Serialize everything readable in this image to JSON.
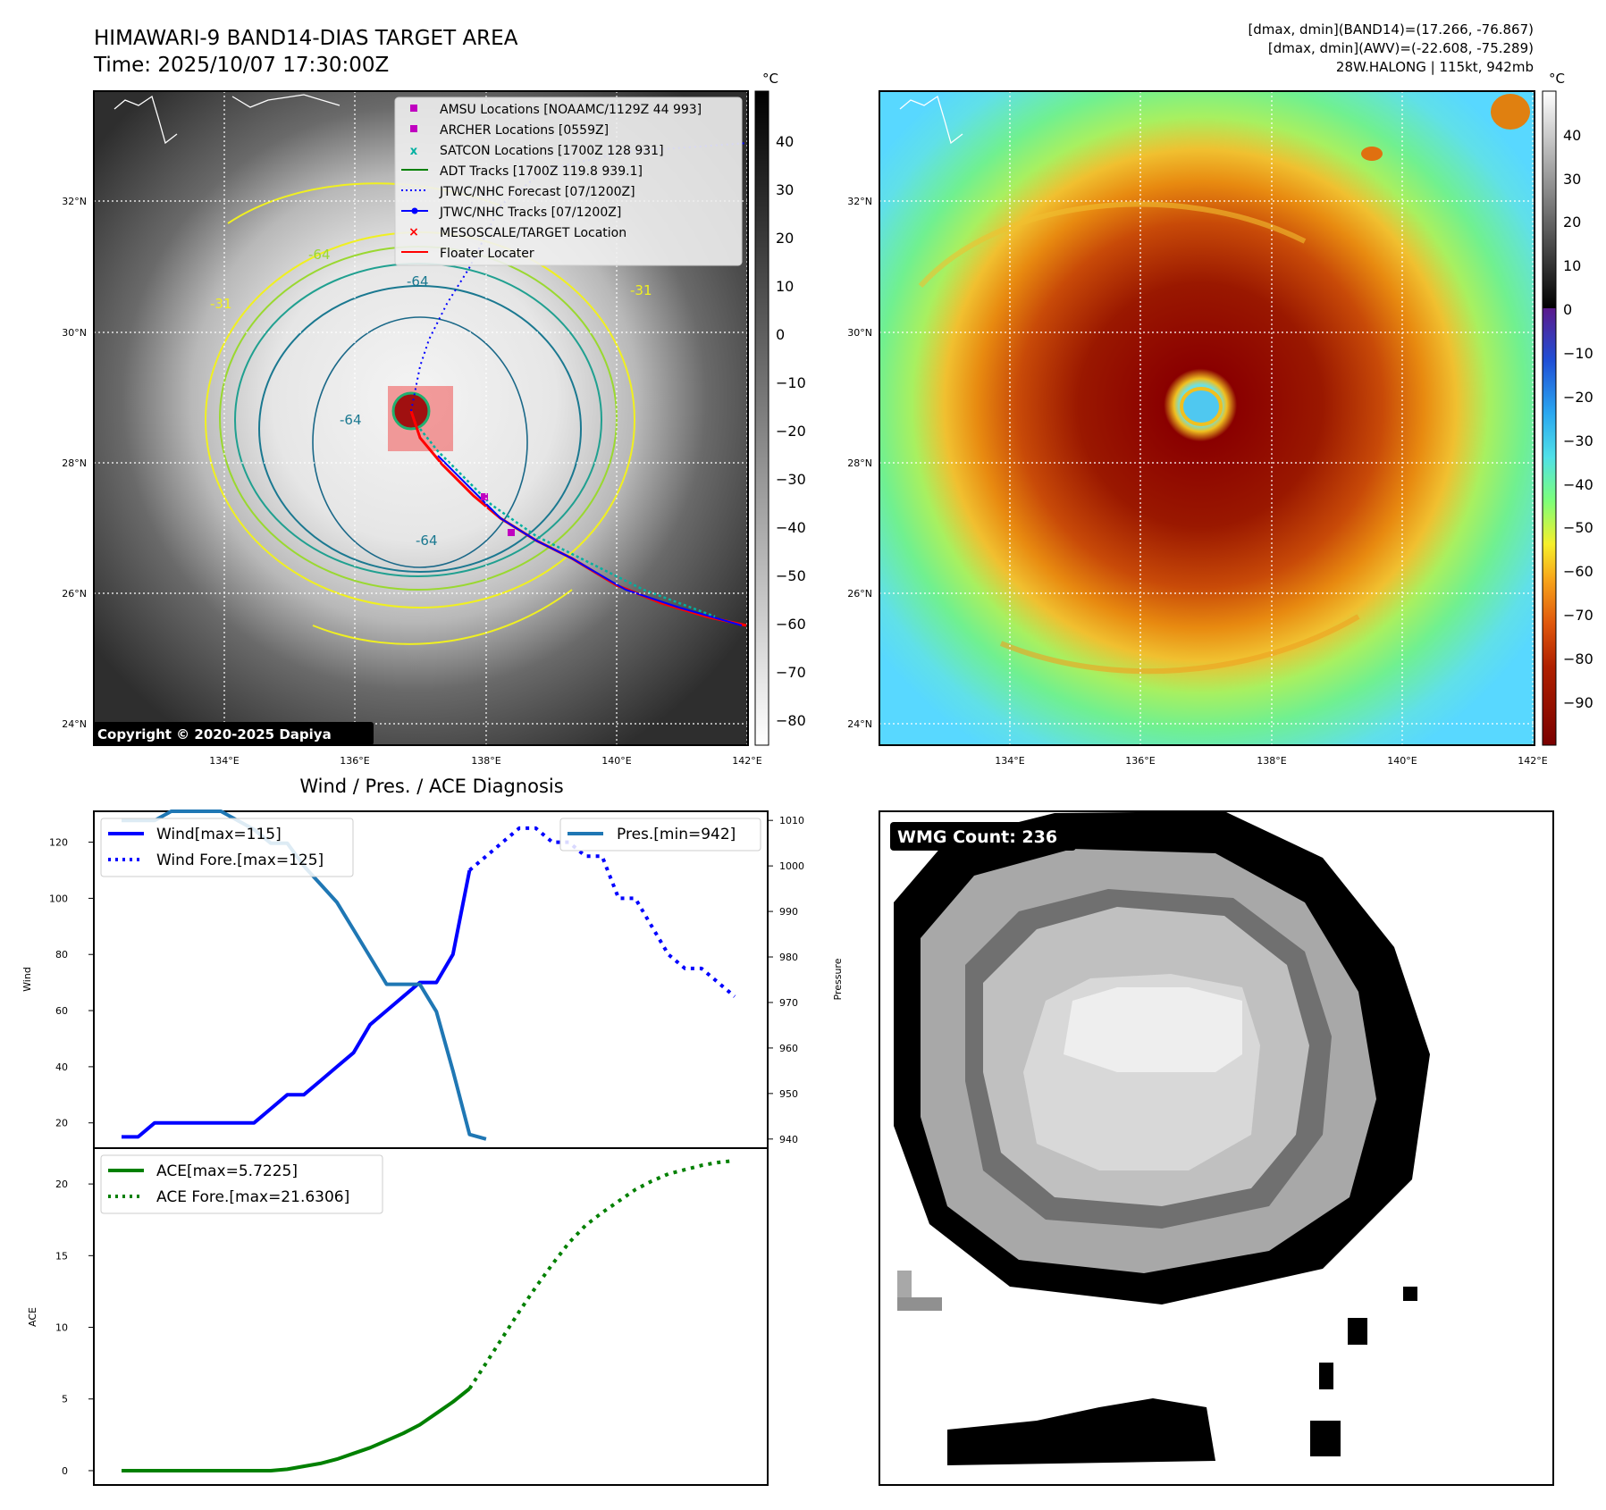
{
  "header": {
    "title_line1": "HIMAWARI-9 BAND14-DIAS TARGET AREA",
    "title_line2": "Time: 2025/10/07 17:30:00Z",
    "info_line1": "[dmax, dmin](BAND14)=(17.266, -76.867)",
    "info_line2": "[dmax, dmin](AWV)=(-22.608, -75.289)",
    "info_line3": "28W.HALONG | 115kt, 942mb"
  },
  "maps": {
    "lat_labels": [
      "32°N",
      "30°N",
      "28°N",
      "26°N",
      "24°N"
    ],
    "lon_labels": [
      "134°E",
      "136°E",
      "138°E",
      "140°E",
      "142°E"
    ],
    "copyright": "Copyright © 2020-2025 Dapiya",
    "contour_labels": [
      "-64",
      "-31",
      "-64",
      "-64",
      "-64",
      "-31"
    ],
    "legend": [
      {
        "label": "AMSU Locations [NOAAMC/1129Z 44 993]",
        "color": "#c000c0",
        "marker": "square"
      },
      {
        "label": "ARCHER Locations [0559Z]",
        "color": "#c000c0",
        "marker": "square"
      },
      {
        "label": "SATCON Locations [1700Z 128 931]",
        "color": "#00b0a0",
        "marker": "x"
      },
      {
        "label": "ADT Tracks [1700Z 119.8 939.1]",
        "color": "#008000",
        "marker": "line"
      },
      {
        "label": "JTWC/NHC Forecast [07/1200Z]",
        "color": "#0000ff",
        "marker": "dotted"
      },
      {
        "label": "JTWC/NHC Tracks [07/1200Z]",
        "color": "#0000ff",
        "marker": "line-dot"
      },
      {
        "label": "MESOSCALE/TARGET Location",
        "color": "#ff0000",
        "marker": "x"
      },
      {
        "label": "Floater Locater",
        "color": "#ff0000",
        "marker": "line"
      }
    ],
    "gray_colorbar": {
      "unit": "°C",
      "ticks": [
        "40",
        "30",
        "20",
        "10",
        "0",
        "−10",
        "−20",
        "−30",
        "−40",
        "−50",
        "−60",
        "−70",
        "−80"
      ]
    },
    "color_colorbar": {
      "unit": "°C",
      "ticks": [
        "40",
        "30",
        "20",
        "10",
        "0",
        "−10",
        "−20",
        "−30",
        "−40",
        "−50",
        "−60",
        "−70",
        "−80",
        "−90"
      ]
    }
  },
  "diagnosis": {
    "title": "Wind / Pres. / ACE Diagnosis",
    "wmg_label": "WMG Count: 236"
  },
  "chart_data": [
    {
      "type": "line",
      "title": "Wind / Pres. / ACE Diagnosis",
      "ylabel": "Wind",
      "y2label": "Pressure",
      "ylim": [
        11,
        131
      ],
      "y2lim": [
        938,
        1012
      ],
      "yticks": [
        "120",
        "100",
        "80",
        "60",
        "40",
        "20"
      ],
      "y2ticks": [
        "1010",
        "1000",
        "990",
        "980",
        "970",
        "960",
        "950",
        "940"
      ],
      "legend_left": [
        "Wind[max=115]",
        "Wind Fore.[max=125]"
      ],
      "legend_right": [
        "Pres.[min=942]"
      ],
      "series": [
        {
          "name": "Wind[max=115]",
          "color": "#0000ff",
          "style": "solid",
          "axis": "left",
          "x": [
            0,
            1,
            2,
            3,
            4,
            5,
            6,
            7,
            8,
            9,
            10,
            11,
            12,
            13,
            14,
            15,
            16,
            17,
            18,
            19,
            20,
            21
          ],
          "values": [
            15,
            15,
            20,
            20,
            20,
            20,
            20,
            20,
            20,
            25,
            30,
            30,
            35,
            40,
            45,
            55,
            60,
            65,
            70,
            70,
            80,
            110
          ]
        },
        {
          "name": "Wind Fore.[max=125]",
          "color": "#0000ff",
          "style": "dotted",
          "axis": "left",
          "x": [
            21,
            22,
            23,
            24,
            25,
            26,
            27,
            28,
            29,
            30,
            31,
            32,
            33,
            34,
            35,
            36,
            37
          ],
          "values": [
            110,
            115,
            120,
            125,
            125,
            120,
            120,
            115,
            115,
            100,
            100,
            90,
            80,
            75,
            75,
            70,
            65
          ]
        },
        {
          "name": "Pres.[min=942]",
          "color": "#1f77b4",
          "style": "solid",
          "axis": "right",
          "x": [
            0,
            1,
            2,
            3,
            4,
            5,
            6,
            7,
            8,
            9,
            10,
            11,
            12,
            13,
            14,
            15,
            16,
            17,
            18,
            19,
            20,
            21,
            22
          ],
          "values": [
            1010,
            1010,
            1010,
            1012,
            1012,
            1012,
            1012,
            1010,
            1008,
            1005,
            1005,
            1000,
            996,
            992,
            986,
            980,
            974,
            974,
            974,
            968,
            955,
            941,
            940
          ]
        }
      ]
    },
    {
      "type": "line",
      "ylabel": "ACE",
      "ylim": [
        -1,
        22.5
      ],
      "yticks": [
        "20",
        "15",
        "10",
        "5",
        "0"
      ],
      "legend": [
        "ACE[max=5.7225]",
        "ACE Fore.[max=21.6306]"
      ],
      "series": [
        {
          "name": "ACE[max=5.7225]",
          "color": "#008000",
          "style": "solid",
          "x": [
            0,
            1,
            2,
            3,
            4,
            5,
            6,
            7,
            8,
            9,
            10,
            11,
            12,
            13,
            14,
            15,
            16,
            17,
            18,
            19,
            20,
            21
          ],
          "values": [
            0,
            0,
            0,
            0,
            0,
            0,
            0,
            0,
            0,
            0,
            0.1,
            0.3,
            0.5,
            0.8,
            1.2,
            1.6,
            2.1,
            2.6,
            3.2,
            4.0,
            4.8,
            5.72
          ]
        },
        {
          "name": "ACE Fore.[max=21.6306]",
          "color": "#008000",
          "style": "dotted",
          "x": [
            21,
            22,
            23,
            24,
            25,
            26,
            27,
            28,
            29,
            30,
            31,
            32,
            33,
            34,
            35,
            36,
            37
          ],
          "values": [
            5.72,
            7.5,
            9.3,
            11.1,
            12.8,
            14.4,
            15.9,
            17.1,
            18.0,
            18.8,
            19.6,
            20.2,
            20.7,
            21.0,
            21.3,
            21.5,
            21.63
          ]
        }
      ]
    }
  ]
}
